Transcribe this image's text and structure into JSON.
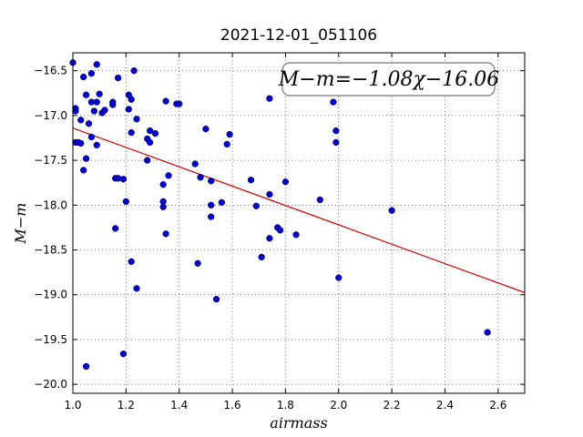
{
  "chart_data": {
    "type": "scatter",
    "title": "2021-12-01_051106",
    "xlabel": "airmass",
    "ylabel": "M−m",
    "xlim": [
      1.0,
      2.7
    ],
    "ylim": [
      -20.1,
      -16.3
    ],
    "y_inverted": true,
    "grid": true,
    "x_ticks": [
      "1.0",
      "1.2",
      "1.4",
      "1.6",
      "1.8",
      "2.0",
      "2.2",
      "2.4",
      "2.6"
    ],
    "x_tick_values": [
      1.0,
      1.2,
      1.4,
      1.6,
      1.8,
      2.0,
      2.2,
      2.4,
      2.6
    ],
    "y_ticks": [
      "−16.5",
      "−17.0",
      "−17.5",
      "−18.0",
      "−18.5",
      "−19.0",
      "−19.5",
      "−20.0"
    ],
    "y_tick_values": [
      -16.5,
      -17.0,
      -17.5,
      -18.0,
      -18.5,
      -19.0,
      -19.5,
      -20.0
    ],
    "annotation": "M−m=−1.08χ−16.06",
    "annotation_position": "top-right",
    "fit": {
      "slope": -1.08,
      "intercept": -16.06,
      "color": "#dd0000"
    },
    "point_color": "#0000cc",
    "points": [
      [
        1.0,
        -16.41
      ],
      [
        1.01,
        -16.92
      ],
      [
        1.01,
        -16.95
      ],
      [
        1.01,
        -17.3
      ],
      [
        1.02,
        -17.3
      ],
      [
        1.03,
        -17.31
      ],
      [
        1.03,
        -17.05
      ],
      [
        1.04,
        -16.57
      ],
      [
        1.04,
        -17.61
      ],
      [
        1.05,
        -16.77
      ],
      [
        1.05,
        -17.48
      ],
      [
        1.05,
        -19.8
      ],
      [
        1.06,
        -17.09
      ],
      [
        1.07,
        -16.85
      ],
      [
        1.07,
        -16.53
      ],
      [
        1.07,
        -17.24
      ],
      [
        1.08,
        -16.95
      ],
      [
        1.09,
        -16.43
      ],
      [
        1.09,
        -16.85
      ],
      [
        1.09,
        -17.33
      ],
      [
        1.1,
        -16.76
      ],
      [
        1.11,
        -16.97
      ],
      [
        1.12,
        -16.94
      ],
      [
        1.15,
        -16.88
      ],
      [
        1.15,
        -16.85
      ],
      [
        1.16,
        -17.7
      ],
      [
        1.16,
        -18.26
      ],
      [
        1.17,
        -16.58
      ],
      [
        1.17,
        -17.7
      ],
      [
        1.19,
        -19.66
      ],
      [
        1.19,
        -17.71
      ],
      [
        1.2,
        -17.96
      ],
      [
        1.21,
        -16.77
      ],
      [
        1.21,
        -16.93
      ],
      [
        1.22,
        -16.82
      ],
      [
        1.22,
        -17.19
      ],
      [
        1.22,
        -18.63
      ],
      [
        1.23,
        -16.5
      ],
      [
        1.24,
        -17.04
      ],
      [
        1.24,
        -18.93
      ],
      [
        1.28,
        -17.26
      ],
      [
        1.28,
        -17.5
      ],
      [
        1.29,
        -17.17
      ],
      [
        1.29,
        -17.3
      ],
      [
        1.31,
        -17.2
      ],
      [
        1.34,
        -17.77
      ],
      [
        1.34,
        -17.96
      ],
      [
        1.34,
        -18.02
      ],
      [
        1.35,
        -16.84
      ],
      [
        1.35,
        -18.32
      ],
      [
        1.36,
        -17.67
      ],
      [
        1.39,
        -16.87
      ],
      [
        1.4,
        -16.87
      ],
      [
        1.46,
        -17.54
      ],
      [
        1.47,
        -18.65
      ],
      [
        1.48,
        -17.69
      ],
      [
        1.5,
        -17.15
      ],
      [
        1.52,
        -17.73
      ],
      [
        1.52,
        -18.13
      ],
      [
        1.52,
        -18.0
      ],
      [
        1.54,
        -19.05
      ],
      [
        1.56,
        -17.97
      ],
      [
        1.58,
        -17.32
      ],
      [
        1.59,
        -17.21
      ],
      [
        1.67,
        -17.72
      ],
      [
        1.69,
        -18.01
      ],
      [
        1.71,
        -18.58
      ],
      [
        1.74,
        -17.88
      ],
      [
        1.74,
        -18.37
      ],
      [
        1.74,
        -16.81
      ],
      [
        1.77,
        -18.25
      ],
      [
        1.78,
        -18.28
      ],
      [
        1.8,
        -17.74
      ],
      [
        1.84,
        -18.33
      ],
      [
        1.93,
        -17.94
      ],
      [
        1.98,
        -16.85
      ],
      [
        1.99,
        -17.17
      ],
      [
        1.99,
        -17.3
      ],
      [
        2.0,
        -18.81
      ],
      [
        2.2,
        -18.06
      ],
      [
        2.56,
        -19.42
      ]
    ]
  }
}
